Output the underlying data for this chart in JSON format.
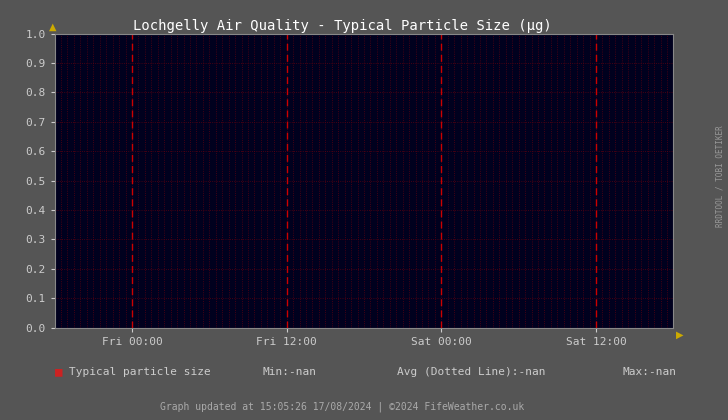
{
  "title": "Lochgelly Air Quality - Typical Particle Size (μg)",
  "outer_bg_color": "#555555",
  "plot_bg_color": "#00001e",
  "grid_color": "#5a0010",
  "title_color": "#ffffff",
  "tick_color": "#cccccc",
  "yticks": [
    0.0,
    0.1,
    0.2,
    0.3,
    0.4,
    0.5,
    0.6,
    0.7,
    0.8,
    0.9,
    1.0
  ],
  "xtick_labels": [
    "Fri 00:00",
    "Fri 12:00",
    "Sat 00:00",
    "Sat 12:00"
  ],
  "xtick_positions": [
    0.125,
    0.375,
    0.625,
    0.875
  ],
  "ylim": [
    0.0,
    1.0
  ],
  "xlim": [
    0.0,
    1.0
  ],
  "legend_label": "Typical particle size",
  "legend_color": "#cc2222",
  "min_label": "Min:-nan",
  "avg_label": "Avg (Dotted Line):-nan",
  "max_label": "Max:-nan",
  "footer_text": "Graph updated at 15:05:26 17/08/2024 | ©2024 FifeWeather.co.uk",
  "footer_color": "#aaaaaa",
  "right_label": "RRDTOOL / TOBI OETIKER",
  "right_label_color": "#999999",
  "arrow_color": "#ccaa00",
  "red_vline_positions": [
    0.125,
    0.375,
    0.625,
    0.875
  ],
  "red_vline_color": "#cc0000",
  "num_minor_vlines": 96,
  "num_minor_hlines": 10
}
